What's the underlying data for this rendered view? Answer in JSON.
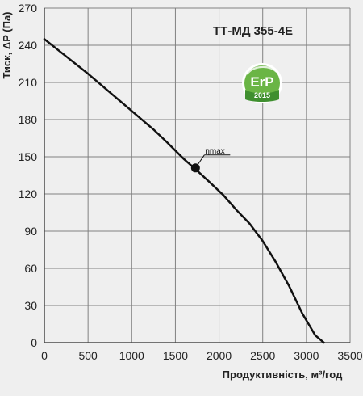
{
  "chart_data": {
    "type": "line",
    "title": "ТТ-МД 355-4E",
    "xlabel": "Продуктивність, м³/год",
    "ylabel": "Тиск, ΔP (Па)",
    "xlim": [
      0,
      3500
    ],
    "ylim": [
      0,
      270
    ],
    "xticks": [
      0,
      500,
      1000,
      1500,
      2000,
      2500,
      3000,
      3500
    ],
    "yticks": [
      0,
      30,
      60,
      90,
      120,
      150,
      180,
      210,
      240,
      270
    ],
    "grid": true,
    "series": [
      {
        "x": [
          0,
          250,
          500,
          750,
          1000,
          1250,
          1400,
          1600,
          1730,
          1900,
          2050,
          2200,
          2350,
          2500,
          2650,
          2800,
          2950,
          3100,
          3200
        ],
        "y": [
          245,
          231,
          217,
          202,
          187,
          172,
          162,
          148,
          140,
          129,
          119,
          107,
          96,
          82,
          65,
          46,
          24,
          6,
          0
        ]
      }
    ],
    "annotations": [
      {
        "text": "ηmax",
        "x": 1730,
        "y": 141
      }
    ]
  },
  "badge": {
    "main_text": "ErP",
    "year_text": "2015",
    "colors": {
      "outer": "#ffffff",
      "green": "#6ab545",
      "green_dark": "#3f8f2f"
    }
  },
  "colors": {
    "background": "#efefef",
    "grid": "#808080",
    "axis": "#4a4a4a",
    "curve": "#111111"
  }
}
